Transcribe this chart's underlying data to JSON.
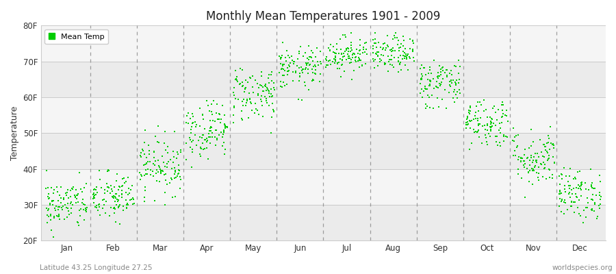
{
  "title": "Monthly Mean Temperatures 1901 - 2009",
  "ylabel": "Temperature",
  "xlabel_bottom_left": "Latitude 43.25 Longitude 27.25",
  "xlabel_bottom_right": "worldspecies.org",
  "legend_label": "Mean Temp",
  "dot_color": "#00cc00",
  "background_color": "#ffffff",
  "ylim": [
    20,
    80
  ],
  "yticks": [
    20,
    30,
    40,
    50,
    60,
    70,
    80
  ],
  "ytick_labels": [
    "20F",
    "30F",
    "40F",
    "50F",
    "60F",
    "70F",
    "80F"
  ],
  "month_names": [
    "Jan",
    "Feb",
    "Mar",
    "Apr",
    "May",
    "Jun",
    "Jul",
    "Aug",
    "Sep",
    "Oct",
    "Nov",
    "Dec"
  ],
  "n_years": 109,
  "seed": 42,
  "monthly_mean_F": [
    30,
    32,
    41,
    51,
    61,
    68,
    72,
    72,
    64,
    53,
    43,
    33
  ],
  "monthly_std_F": [
    3.5,
    3.5,
    4.0,
    4.0,
    4.0,
    3.0,
    2.5,
    2.5,
    3.5,
    3.5,
    4.0,
    3.5
  ],
  "monthly_min_F": [
    21,
    21,
    28,
    38,
    50,
    59,
    65,
    65,
    57,
    45,
    32,
    25
  ],
  "monthly_max_F": [
    42,
    42,
    52,
    59,
    68,
    76,
    78,
    78,
    72,
    62,
    52,
    43
  ],
  "band_colors": [
    "#ebebeb",
    "#f5f5f5",
    "#ebebeb",
    "#f5f5f5",
    "#ebebeb",
    "#f5f5f5"
  ],
  "dashed_color": "#888888",
  "spine_color": "#cccccc",
  "tick_color": "#333333"
}
